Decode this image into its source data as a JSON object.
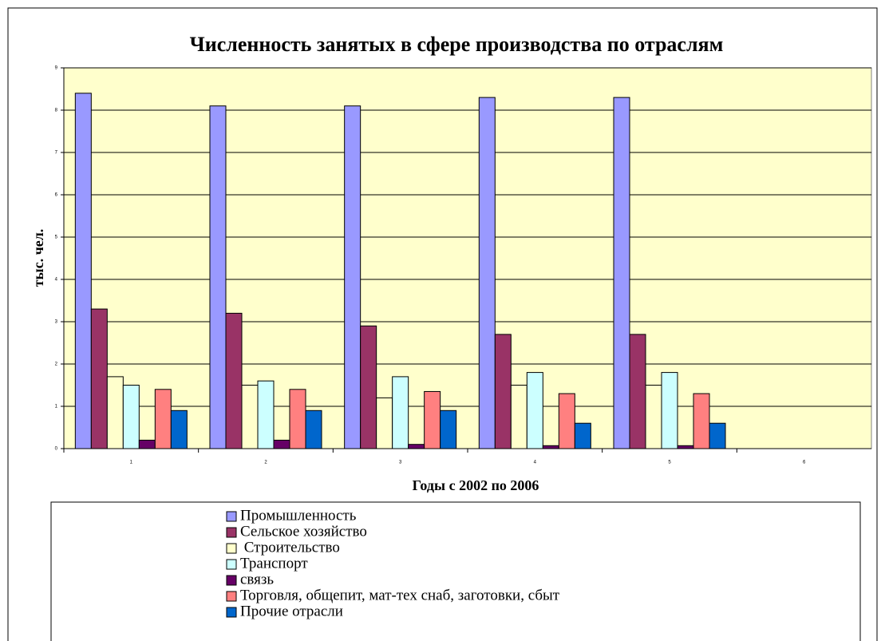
{
  "chart_data": {
    "type": "bar",
    "title": "Численность занятых в сфере производства по отраслям",
    "y_label": "тыс. чел.",
    "x_label": "Годы с 2002 по 2006",
    "categories": [
      "1",
      "2",
      "3",
      "4",
      "5",
      "6"
    ],
    "series": [
      {
        "name": "Промышленность",
        "color": "#9999ff",
        "values": [
          8.4,
          8.1,
          8.1,
          8.3,
          8.3,
          null
        ]
      },
      {
        "name": "Сельское хозяйство",
        "color": "#993366",
        "values": [
          3.3,
          3.2,
          2.9,
          2.7,
          2.7,
          null
        ]
      },
      {
        "name": " Строительство",
        "color": "#ffffcc",
        "values": [
          1.7,
          1.5,
          1.2,
          1.5,
          1.5,
          null
        ]
      },
      {
        "name": "Транспорт",
        "color": "#ccffff",
        "values": [
          1.5,
          1.6,
          1.7,
          1.8,
          1.8,
          null
        ]
      },
      {
        "name": "связь",
        "color": "#660066",
        "values": [
          0.2,
          0.2,
          0.1,
          0.07,
          0.07,
          null
        ]
      },
      {
        "name": "Торговля, общепит, мат-тех снаб, заготовки, сбыт",
        "color": "#ff8080",
        "values": [
          1.4,
          1.4,
          1.35,
          1.3,
          1.3,
          null
        ]
      },
      {
        "name": "Прочие отрасли",
        "color": "#0066cc",
        "values": [
          0.9,
          0.9,
          0.9,
          0.6,
          0.6,
          null
        ]
      }
    ],
    "ylim": [
      0,
      9
    ],
    "yticks": [
      0,
      1,
      2,
      3,
      4,
      5,
      6,
      7,
      8,
      9
    ],
    "grid": true,
    "plot_background": "#ffffcc",
    "legend": "bottom"
  }
}
